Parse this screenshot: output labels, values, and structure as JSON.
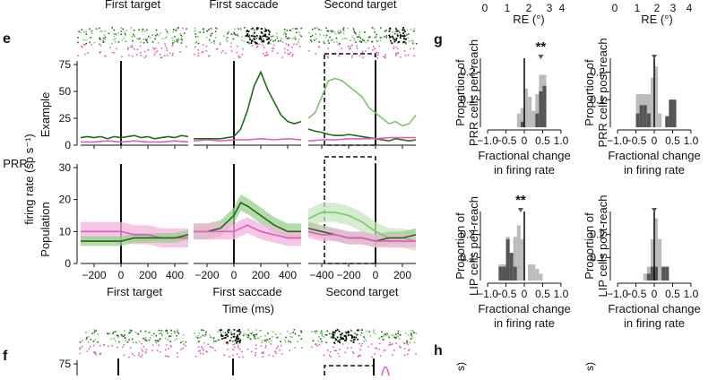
{
  "figure": {
    "col_titles": [
      "First target",
      "First saccade",
      "Second target"
    ],
    "panel_labels": [
      "e",
      "f",
      "g",
      "h"
    ],
    "ylabel_outer": [
      "PRR",
      "firing rate (sp s⁻¹)"
    ],
    "xlabel_common": "Time (ms)",
    "row_labels": [
      "Example",
      "Population"
    ],
    "top_re_axis_label": "RE (°)",
    "top_re_ticks": [
      "0",
      "1",
      "2",
      "3",
      "4"
    ],
    "h_partial_label": "s)"
  },
  "colors": {
    "dark_green": "#1f6b1a",
    "light_green": "#7cc36e",
    "pink": "#e05cc0",
    "pink_band": "#f4b3dd",
    "green_band": "#9ad08c",
    "light_green_band": "#c7e6bd",
    "dark_bar": "#555555",
    "light_bar": "#bbbbbb"
  },
  "chart_data": [
    {
      "type": "line",
      "panel": "e",
      "row": "Example",
      "column": "First target",
      "xlabel": "First target",
      "xlim": [
        -300,
        500
      ],
      "ylim": [
        0,
        75
      ],
      "xticks": [
        -200,
        0,
        200,
        400
      ],
      "yticks": [
        0,
        25,
        50,
        75
      ],
      "series": [
        {
          "name": "dark green",
          "x": [
            -300,
            -250,
            -200,
            -150,
            -100,
            -50,
            0,
            50,
            100,
            150,
            200,
            250,
            300,
            350,
            400,
            450,
            500
          ],
          "y": [
            7,
            8,
            7,
            8,
            6,
            8,
            7,
            8,
            9,
            7,
            8,
            6,
            7,
            8,
            7,
            9,
            8
          ]
        },
        {
          "name": "pink",
          "x": [
            -300,
            -200,
            -100,
            0,
            100,
            200,
            300,
            400,
            500
          ],
          "y": [
            3,
            3,
            4,
            3,
            4,
            3,
            3,
            4,
            3
          ]
        }
      ]
    },
    {
      "type": "line",
      "panel": "e",
      "row": "Example",
      "column": "First saccade",
      "xlabel": "First saccade",
      "xlim": [
        -300,
        500
      ],
      "ylim": [
        0,
        75
      ],
      "xticks": [
        -200,
        0,
        200,
        400
      ],
      "yticks": [
        0,
        25,
        50,
        75
      ],
      "series": [
        {
          "name": "dark green",
          "x": [
            -300,
            -200,
            -100,
            0,
            50,
            100,
            150,
            200,
            250,
            300,
            350,
            400,
            450,
            500
          ],
          "y": [
            6,
            6,
            6,
            8,
            15,
            32,
            55,
            68,
            52,
            40,
            28,
            22,
            20,
            22
          ]
        },
        {
          "name": "pink",
          "x": [
            -300,
            -200,
            -100,
            0,
            100,
            200,
            300,
            400,
            500
          ],
          "y": [
            4,
            5,
            4,
            5,
            5,
            6,
            5,
            6,
            5
          ]
        }
      ]
    },
    {
      "type": "line",
      "panel": "e",
      "row": "Example",
      "column": "Second target",
      "xlabel": "Second target",
      "xlim": [
        -500,
        300
      ],
      "ylim": [
        0,
        75
      ],
      "xticks": [
        -400,
        -200,
        0,
        200
      ],
      "yticks": [
        0,
        25,
        50,
        75
      ],
      "dashed_window": [
        -380,
        0
      ],
      "series": [
        {
          "name": "light green",
          "x": [
            -500,
            -450,
            -400,
            -350,
            -300,
            -250,
            -200,
            -150,
            -100,
            -50,
            0,
            50,
            100,
            150,
            200,
            250,
            300
          ],
          "y": [
            25,
            30,
            45,
            60,
            62,
            60,
            55,
            50,
            45,
            35,
            30,
            25,
            20,
            22,
            18,
            20,
            28
          ]
        },
        {
          "name": "dark green",
          "x": [
            -500,
            -450,
            -400,
            -350,
            -300,
            -250,
            -200,
            -150,
            -100,
            -50,
            0,
            50,
            100,
            150,
            200,
            250,
            300
          ],
          "y": [
            15,
            13,
            12,
            10,
            9,
            9,
            10,
            9,
            8,
            7,
            6,
            5,
            4,
            6,
            5,
            4,
            5
          ]
        },
        {
          "name": "pink",
          "x": [
            -500,
            -400,
            -300,
            -200,
            -100,
            0,
            100,
            200,
            300
          ],
          "y": [
            4,
            5,
            5,
            6,
            6,
            6,
            7,
            7,
            7
          ]
        }
      ]
    },
    {
      "type": "line",
      "panel": "e",
      "row": "Population",
      "column": "First target",
      "xlabel": "First target",
      "xlim": [
        -300,
        500
      ],
      "ylim": [
        0,
        30
      ],
      "xticks": [
        -200,
        0,
        200,
        400
      ],
      "yticks": [
        0,
        10,
        20,
        30
      ],
      "series": [
        {
          "name": "pink",
          "x": [
            -300,
            -200,
            -100,
            0,
            100,
            200,
            300,
            400,
            500
          ],
          "y": [
            10,
            10,
            10,
            10,
            9,
            9,
            8,
            8,
            8
          ],
          "sem": 3
        },
        {
          "name": "dark green",
          "x": [
            -300,
            -200,
            -100,
            0,
            100,
            200,
            300,
            400,
            500
          ],
          "y": [
            7,
            7,
            7,
            7,
            8,
            8,
            8,
            8,
            9
          ],
          "sem": 1.5
        }
      ]
    },
    {
      "type": "line",
      "panel": "e",
      "row": "Population",
      "column": "First saccade",
      "xlabel": "First saccade",
      "xlim": [
        -300,
        500
      ],
      "ylim": [
        0,
        30
      ],
      "xticks": [
        -200,
        0,
        200,
        400
      ],
      "yticks": [
        0,
        10,
        20,
        30
      ],
      "series": [
        {
          "name": "dark green",
          "x": [
            -300,
            -200,
            -100,
            0,
            50,
            100,
            200,
            300,
            400,
            500
          ],
          "y": [
            10,
            10,
            11,
            15,
            19,
            18,
            15,
            12,
            10,
            10
          ],
          "sem": 2.5
        },
        {
          "name": "pink",
          "x": [
            -300,
            -200,
            -100,
            0,
            100,
            200,
            300,
            400,
            500
          ],
          "y": [
            10,
            10,
            10,
            10,
            12,
            10,
            9,
            8,
            8
          ],
          "sem": 2.5
        }
      ]
    },
    {
      "type": "line",
      "panel": "e",
      "row": "Population",
      "column": "Second target",
      "xlabel": "Second target",
      "xlim": [
        -500,
        300
      ],
      "ylim": [
        0,
        30
      ],
      "xticks": [
        -400,
        -200,
        0,
        200
      ],
      "yticks": [
        0,
        10,
        20,
        30
      ],
      "dashed_window": [
        -380,
        0
      ],
      "series": [
        {
          "name": "light green",
          "x": [
            -500,
            -400,
            -300,
            -200,
            -100,
            0,
            100,
            200,
            300
          ],
          "y": [
            14,
            16,
            16,
            15,
            13,
            10,
            8,
            8,
            7
          ],
          "sem": 3
        },
        {
          "name": "dark green",
          "x": [
            -500,
            -400,
            -300,
            -200,
            -100,
            0,
            100,
            200,
            300
          ],
          "y": [
            11,
            10,
            9,
            8,
            8,
            7,
            8,
            8,
            9
          ],
          "sem": 2
        },
        {
          "name": "pink",
          "x": [
            -500,
            -400,
            -300,
            -200,
            -100,
            0,
            100,
            200,
            300
          ],
          "y": [
            10,
            9,
            9,
            8,
            8,
            7,
            7,
            7,
            7
          ],
          "sem": 2
        }
      ]
    },
    {
      "type": "bar",
      "panel": "g",
      "title": "PRR cells peri-reach",
      "xlabel": [
        "Fractional change",
        "in firing rate"
      ],
      "ylabel": [
        "Proportion of",
        "PRR cells peri-reach"
      ],
      "xlim": [
        -1.1,
        1.1
      ],
      "ylim": [
        0,
        0.25
      ],
      "xticks": [
        -1.0,
        -0.5,
        0.0,
        0.5,
        1.0
      ],
      "yticks": [
        0.1,
        0.2
      ],
      "xtick_labels": [
        "−1.0",
        "−0.5",
        "0",
        "0.5",
        "1.0"
      ],
      "ytick_labels": [
        "0.1",
        "0.2"
      ],
      "bin_centers": [
        -0.15,
        -0.05,
        0.05,
        0.15,
        0.25,
        0.35,
        0.45,
        0.55,
        0.65
      ],
      "series": [
        {
          "name": "all cells",
          "values": [
            0.05,
            0.07,
            0.14,
            0.11,
            0.06,
            0.12,
            0.19,
            0.19,
            0.0
          ]
        },
        {
          "name": "significant",
          "values": [
            0.0,
            0.02,
            0.0,
            0.0,
            0.0,
            0.05,
            0.13,
            0.15,
            0.0
          ]
        }
      ],
      "median_marker": 0.45,
      "significance": "**"
    },
    {
      "type": "bar",
      "panel": "g",
      "title": "PRR cells post-reach",
      "xlabel": [
        "Fractional change",
        "in firing rate"
      ],
      "ylabel": [
        "Proportion of",
        "PRR cells post-reach"
      ],
      "xlim": [
        -1.1,
        1.1
      ],
      "ylim": [
        0,
        0.25
      ],
      "xticks": [
        -1.0,
        -0.5,
        0.0,
        0.5,
        1.0
      ],
      "yticks": [
        0.1,
        0.2
      ],
      "xtick_labels": [
        "−1.0",
        "−0.5",
        "0",
        "0.5",
        "1.0"
      ],
      "ytick_labels": [
        "0.1",
        "0.2"
      ],
      "bin_centers": [
        -0.45,
        -0.35,
        -0.25,
        -0.15,
        -0.05,
        0.05,
        0.15,
        0.35,
        0.45,
        0.55
      ],
      "series": [
        {
          "name": "all cells",
          "values": [
            0.12,
            0.12,
            0.12,
            0.12,
            0.18,
            0.22,
            0.05,
            0.04,
            0.1,
            0.1
          ]
        },
        {
          "name": "significant",
          "values": [
            0.05,
            0.08,
            0.08,
            0.05,
            0.0,
            0.0,
            0.0,
            0.04,
            0.1,
            0.1
          ]
        }
      ],
      "median_marker": 0.0
    },
    {
      "type": "bar",
      "panel": "g",
      "title": "LIP cells peri-reach",
      "xlabel": [
        "Fractional change",
        "in firing rate"
      ],
      "ylabel": [
        "Proportion of",
        "LIP cells peri-reach"
      ],
      "xlim": [
        -1.1,
        1.1
      ],
      "ylim": [
        0,
        0.3
      ],
      "xticks": [
        -1.0,
        -0.5,
        0.0,
        0.5,
        1.0
      ],
      "yticks": [
        0.1,
        0.2
      ],
      "xtick_labels": [
        "−1.0",
        "−0.5",
        "0",
        "0.5",
        "1.0"
      ],
      "ytick_labels": [
        "0.1",
        "0.2"
      ],
      "bin_centers": [
        -0.65,
        -0.55,
        -0.45,
        -0.35,
        -0.25,
        -0.15,
        -0.05,
        0.15,
        0.25,
        0.35,
        0.45
      ],
      "series": [
        {
          "name": "all cells",
          "values": [
            0.07,
            0.07,
            0.19,
            0.12,
            0.19,
            0.24,
            0.18,
            0.07,
            0.07,
            0.05,
            0.03
          ]
        },
        {
          "name": "significant",
          "values": [
            0.06,
            0.06,
            0.18,
            0.12,
            0.06,
            0.0,
            0.0,
            0.0,
            0.0,
            0.0,
            0.0
          ]
        }
      ],
      "median_marker": -0.1,
      "significance": "**"
    },
    {
      "type": "bar",
      "panel": "g",
      "title": "LIP cells post-reach",
      "xlabel": [
        "Fractional change",
        "in firing rate"
      ],
      "ylabel": [
        "Proportion of",
        "LIP cells post-reach"
      ],
      "xlim": [
        -1.1,
        1.1
      ],
      "ylim": [
        0,
        0.3
      ],
      "xticks": [
        -1.0,
        -0.5,
        0.0,
        0.5,
        1.0
      ],
      "yticks": [
        0.1,
        0.2
      ],
      "xtick_labels": [
        "−1.0",
        "−0.5",
        "0",
        "0.5",
        "1.0"
      ],
      "ytick_labels": [
        "0.1",
        "0.2"
      ],
      "bin_centers": [
        -0.25,
        -0.15,
        -0.05,
        0.05,
        0.15,
        0.25,
        0.35
      ],
      "series": [
        {
          "name": "all cells",
          "values": [
            0.03,
            0.06,
            0.18,
            0.27,
            0.18,
            0.06,
            0.02
          ]
        },
        {
          "name": "significant",
          "values": [
            0.0,
            0.03,
            0.06,
            0.06,
            0.0,
            0.06,
            0.06
          ]
        }
      ],
      "median_marker": 0.0
    },
    {
      "type": "line",
      "panel": "f",
      "row": "Example (partial)",
      "column": "all",
      "ylim": [
        0,
        75
      ],
      "yticks": [
        75
      ],
      "note": "Top edge of panel f, cropped in the image"
    }
  ]
}
